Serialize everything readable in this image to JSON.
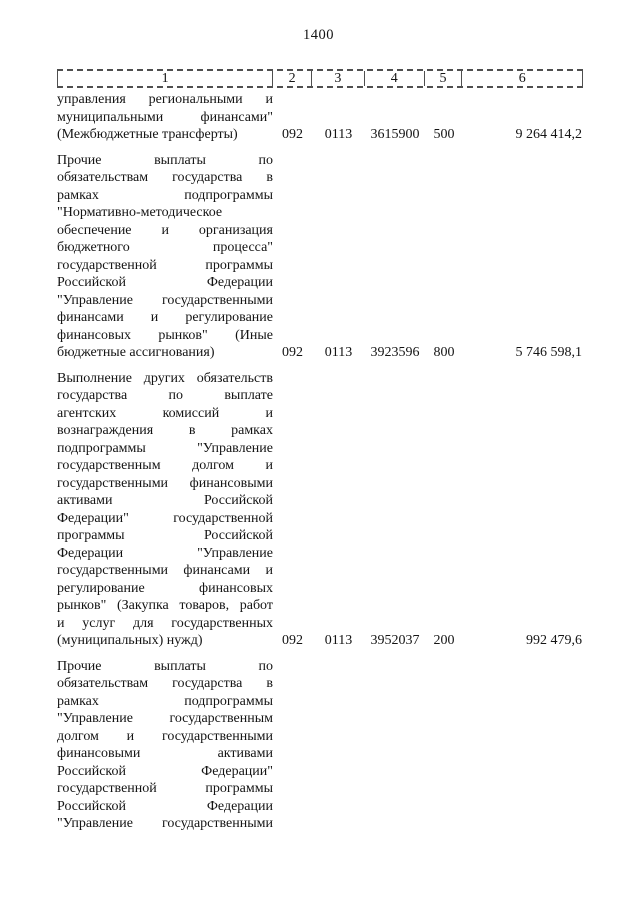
{
  "page": {
    "number": "1400"
  },
  "table": {
    "header_columns": [
      "1",
      "2",
      "3",
      "4",
      "5",
      "6"
    ],
    "rows": [
      {
        "name_lines": [
          "управления региональными и",
          "муниципальными финансами\"",
          "(Межбюджетные трансферты)"
        ],
        "justify_last_line": false,
        "codes": [
          "092",
          "0113",
          "3615900",
          "500"
        ],
        "amount": "9 264 414,2"
      },
      {
        "name_lines": [
          "Прочие выплаты по",
          "обязательствам государства в",
          "рамках подпрограммы",
          "\"Нормативно-методическое",
          "обеспечение и организация",
          "бюджетного процесса\"",
          "государственной программы",
          "Российской Федерации",
          "\"Управление государственными",
          "финансами и регулирование",
          "финансовых рынков\" (Иные",
          "бюджетные ассигнования)"
        ],
        "justify_last_line": false,
        "codes": [
          "092",
          "0113",
          "3923596",
          "800"
        ],
        "amount": "5 746 598,1"
      },
      {
        "name_lines": [
          "Выполнение других обязательств",
          "государства по выплате",
          "агентских комиссий и",
          "вознаграждения в рамках",
          "подпрограммы \"Управление",
          "государственным долгом и",
          "государственными финансовыми",
          "активами Российской",
          "Федерации\" государственной",
          "программы Российской",
          "Федерации \"Управление",
          "государственными финансами и",
          "регулирование финансовых",
          "рынков\" (Закупка товаров, работ",
          "и услуг для государственных",
          "(муниципальных) нужд)"
        ],
        "justify_last_line": false,
        "codes": [
          "092",
          "0113",
          "3952037",
          "200"
        ],
        "amount": "992 479,6"
      },
      {
        "name_lines": [
          "Прочие выплаты по",
          "обязательствам государства в",
          "рамках подпрограммы",
          "\"Управление государственным",
          "долгом и государственными",
          "финансовыми активами",
          "Российской Федерации\"",
          "государственной программы",
          "Российской Федерации",
          "\"Управление государственными"
        ],
        "justify_last_line": true,
        "codes": [
          "",
          "",
          "",
          ""
        ],
        "amount": ""
      }
    ]
  }
}
